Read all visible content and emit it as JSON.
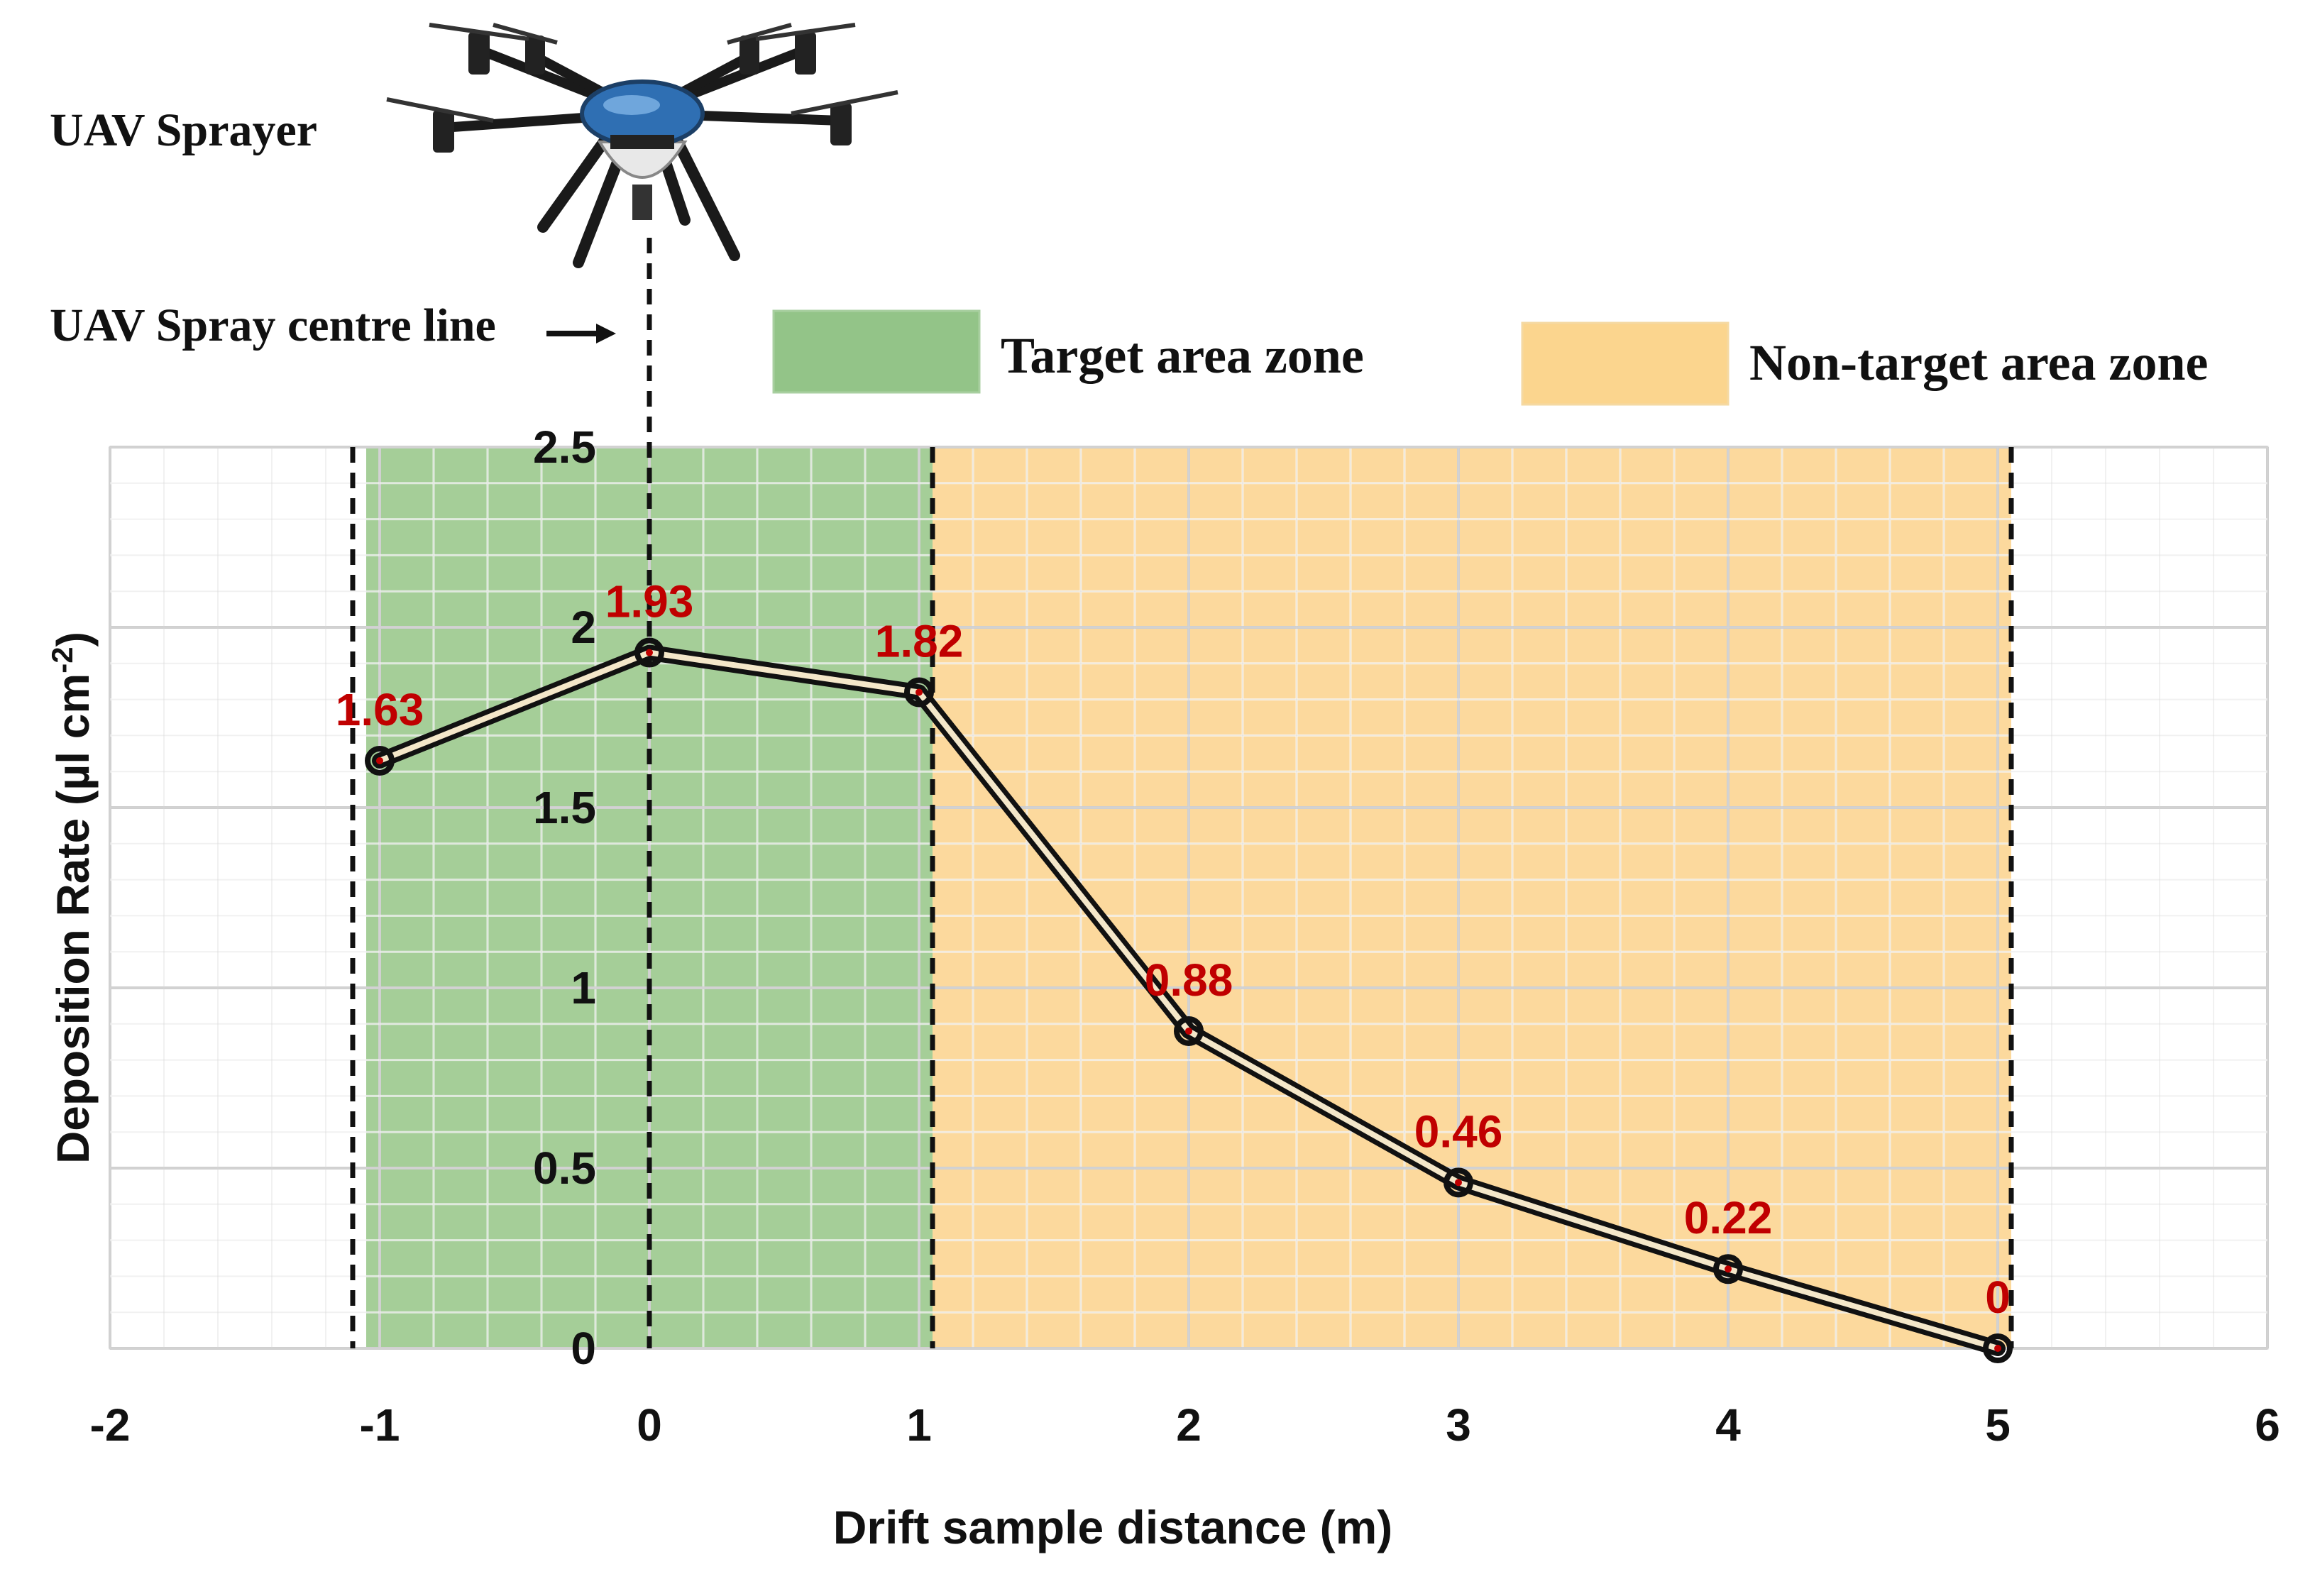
{
  "colors": {
    "target_zone": "#9bc98d",
    "non_target_zone": "#fcd592",
    "legend_target": "#93c488",
    "legend_non_target": "#fbd58e",
    "grid": "#d8d8d8",
    "data_label": "#c00000",
    "line": "#111111",
    "line_inner": "#f4e7c9"
  },
  "annotations": {
    "uav_sprayer": "UAV Sprayer",
    "spray_centre_line": "UAV Spray centre line",
    "drone_icon": "uav-drone-icon"
  },
  "chart_data": {
    "type": "line",
    "title": "",
    "xlabel": "Drift sample distance (m)",
    "ylabel_main": "Deposition Rate (µl cm",
    "ylabel_sup": "-2",
    "ylabel_close": ")",
    "xlim": [
      -2,
      6
    ],
    "ylim": [
      0,
      2.5
    ],
    "x_ticks": [
      -2,
      -1,
      0,
      1,
      2,
      3,
      4,
      5,
      6
    ],
    "x_tick_labels": [
      "-2",
      "-1",
      "0",
      "1",
      "2",
      "3",
      "4",
      "5",
      "6"
    ],
    "y_ticks": [
      0,
      0.5,
      1,
      1.5,
      2,
      2.5
    ],
    "y_tick_labels": [
      "0",
      "0.5",
      "1",
      "1.5",
      "2",
      "2.5"
    ],
    "grid": true,
    "series": [
      {
        "name": "Deposition rate",
        "x": [
          -1,
          0,
          1,
          2,
          3,
          4,
          5
        ],
        "values": [
          1.63,
          1.93,
          1.82,
          0.88,
          0.46,
          0.22,
          0
        ],
        "labels": [
          "1.63",
          "1.93",
          "1.82",
          "0.88",
          "0.46",
          "0.22",
          "0"
        ]
      }
    ],
    "zones": [
      {
        "name": "Target area zone",
        "x_start": -1.05,
        "x_end": 1.05
      },
      {
        "name": "Non-target area zone",
        "x_start": 1.05,
        "x_end": 5.05
      }
    ],
    "reference_lines_x": [
      -1.1,
      0,
      1.05,
      5.05
    ],
    "legend": [
      {
        "name": "Target area zone",
        "color_key": "legend_target"
      },
      {
        "name": "Non-target area zone",
        "color_key": "legend_non_target"
      }
    ],
    "legend_position": "top"
  }
}
